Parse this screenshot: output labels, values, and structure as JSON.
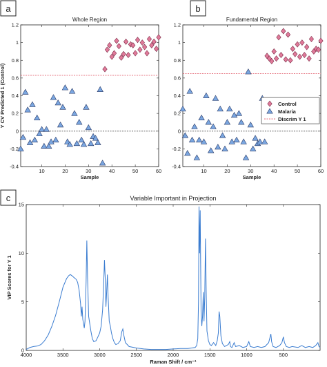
{
  "panels": {
    "a": {
      "label": "a"
    },
    "b": {
      "label": "b"
    },
    "c": {
      "label": "c"
    }
  },
  "colors": {
    "control": "#e07a9a",
    "malaria": "#7aa6e0",
    "discrim": "#e05060",
    "vip_line": "#3a7cd0"
  },
  "chart_data": [
    {
      "type": "scatter",
      "title": "Whole Region",
      "xlabel": "Sample",
      "ylabel": "Y CV Predicted 1 (Control)",
      "xlim": [
        1,
        60
      ],
      "ylim": [
        -0.4,
        1.2
      ],
      "xticks": [
        10,
        20,
        30,
        40,
        50,
        60
      ],
      "yticks": [
        -0.4,
        -0.2,
        0,
        0.2,
        0.4,
        0.6,
        0.8,
        1,
        1.2
      ],
      "discrim_y": 0.63,
      "zero_line": 0,
      "series": [
        {
          "name": "Malaria",
          "marker": "triangle",
          "points": [
            [
              1,
              -0.2
            ],
            [
              2,
              -0.07
            ],
            [
              3,
              0.44
            ],
            [
              4,
              0.24
            ],
            [
              5,
              -0.13
            ],
            [
              6,
              0.3
            ],
            [
              7,
              -0.1
            ],
            [
              8,
              0.15
            ],
            [
              9,
              -0.03
            ],
            [
              10,
              0.02
            ],
            [
              11,
              -0.17
            ],
            [
              12,
              0.02
            ],
            [
              13,
              -0.17
            ],
            [
              14,
              -0.12
            ],
            [
              15,
              0.38
            ],
            [
              16,
              -0.1
            ],
            [
              17,
              0.32
            ],
            [
              18,
              0.07
            ],
            [
              19,
              0.27
            ],
            [
              20,
              0.49
            ],
            [
              21,
              -0.12
            ],
            [
              22,
              -0.15
            ],
            [
              23,
              0.45
            ],
            [
              24,
              0.2
            ],
            [
              25,
              -0.14
            ],
            [
              26,
              0.1
            ],
            [
              27,
              -0.1
            ],
            [
              28,
              -0.15
            ],
            [
              29,
              0.27
            ],
            [
              30,
              0.04
            ],
            [
              31,
              -0.14
            ],
            [
              32,
              -0.06
            ],
            [
              33,
              -0.08
            ],
            [
              34,
              -0.13
            ],
            [
              35,
              0.47
            ],
            [
              36,
              -0.36
            ]
          ]
        },
        {
          "name": "Control",
          "marker": "diamond",
          "points": [
            [
              37,
              0.7
            ],
            [
              38,
              0.92
            ],
            [
              39,
              0.97
            ],
            [
              40,
              0.84
            ],
            [
              41,
              0.88
            ],
            [
              42,
              1.02
            ],
            [
              43,
              0.96
            ],
            [
              44,
              0.83
            ],
            [
              45,
              0.87
            ],
            [
              46,
              1.01
            ],
            [
              47,
              0.86
            ],
            [
              48,
              0.98
            ],
            [
              49,
              0.97
            ],
            [
              50,
              0.88
            ],
            [
              51,
              1.03
            ],
            [
              52,
              0.92
            ],
            [
              53,
              1.0
            ],
            [
              54,
              0.95
            ],
            [
              55,
              0.88
            ],
            [
              56,
              1.04
            ],
            [
              57,
              0.97
            ],
            [
              58,
              1.01
            ],
            [
              59,
              0.93
            ],
            [
              60,
              1.06
            ]
          ]
        }
      ]
    },
    {
      "type": "scatter",
      "title": "Fundamental Region",
      "xlabel": "Sample",
      "ylabel": "",
      "xlim": [
        1,
        60
      ],
      "ylim": [
        -0.4,
        1.2
      ],
      "xticks": [
        10,
        20,
        30,
        40,
        50,
        60
      ],
      "yticks": [
        -0.4,
        -0.2,
        0,
        0.2,
        0.4,
        0.6,
        0.8,
        1,
        1.2
      ],
      "discrim_y": 0.65,
      "zero_line": 0,
      "legend": {
        "position": "right",
        "entries": [
          "Control",
          "Malaria",
          "Discrim Y 1"
        ]
      },
      "series": [
        {
          "name": "Malaria",
          "marker": "triangle",
          "points": [
            [
              1,
              0.25
            ],
            [
              2,
              -0.05
            ],
            [
              3,
              -0.25
            ],
            [
              4,
              0.45
            ],
            [
              5,
              -0.1
            ],
            [
              6,
              0.05
            ],
            [
              7,
              -0.3
            ],
            [
              8,
              -0.1
            ],
            [
              9,
              0.15
            ],
            [
              10,
              -0.12
            ],
            [
              11,
              0.4
            ],
            [
              12,
              0.1
            ],
            [
              13,
              -0.22
            ],
            [
              14,
              0.05
            ],
            [
              15,
              0.37
            ],
            [
              16,
              -0.18
            ],
            [
              17,
              0.25
            ],
            [
              18,
              -0.05
            ],
            [
              19,
              -0.2
            ],
            [
              20,
              0.1
            ],
            [
              21,
              0.25
            ],
            [
              22,
              -0.12
            ],
            [
              23,
              0.18
            ],
            [
              24,
              -0.1
            ],
            [
              25,
              0.2
            ],
            [
              26,
              0.1
            ],
            [
              27,
              -0.12
            ],
            [
              28,
              -0.3
            ],
            [
              29,
              0.67
            ],
            [
              30,
              0.07
            ],
            [
              31,
              -0.2
            ],
            [
              32,
              -0.08
            ],
            [
              33,
              -0.14
            ],
            [
              34,
              -0.12
            ],
            [
              35,
              0.37
            ],
            [
              36,
              -0.12
            ]
          ]
        },
        {
          "name": "Control",
          "marker": "diamond",
          "points": [
            [
              37,
              0.85
            ],
            [
              38,
              0.82
            ],
            [
              39,
              0.79
            ],
            [
              40,
              0.9
            ],
            [
              41,
              0.82
            ],
            [
              42,
              1.06
            ],
            [
              43,
              0.86
            ],
            [
              44,
              1.13
            ],
            [
              45,
              0.81
            ],
            [
              46,
              1.09
            ],
            [
              47,
              0.8
            ],
            [
              48,
              0.93
            ],
            [
              49,
              0.87
            ],
            [
              50,
              0.98
            ],
            [
              51,
              0.84
            ],
            [
              52,
              1.0
            ],
            [
              53,
              0.86
            ],
            [
              54,
              0.95
            ],
            [
              55,
              0.82
            ],
            [
              56,
              1.04
            ],
            [
              57,
              0.9
            ],
            [
              58,
              0.93
            ],
            [
              59,
              0.92
            ],
            [
              60,
              1.02
            ]
          ]
        }
      ]
    },
    {
      "type": "line",
      "title": "Variable Important in Projection",
      "xlabel": "Raman Shift / cm⁻¹",
      "ylabel": "VIP Scores for Y 1",
      "xlim": [
        4000,
        0
      ],
      "ylim": [
        0,
        15
      ],
      "xticks": [
        4000,
        3500,
        3000,
        2500,
        2000,
        1500,
        1000,
        500
      ],
      "yticks": [
        0,
        5,
        10,
        15
      ],
      "series": [
        {
          "name": "VIP",
          "points": [
            [
              4000,
              0.1
            ],
            [
              3950,
              0.3
            ],
            [
              3900,
              0.4
            ],
            [
              3850,
              0.45
            ],
            [
              3800,
              0.6
            ],
            [
              3750,
              1.0
            ],
            [
              3700,
              1.6
            ],
            [
              3650,
              2.5
            ],
            [
              3600,
              3.6
            ],
            [
              3550,
              5.0
            ],
            [
              3500,
              6.5
            ],
            [
              3450,
              7.4
            ],
            [
              3420,
              7.7
            ],
            [
              3400,
              7.8
            ],
            [
              3380,
              7.7
            ],
            [
              3350,
              7.5
            ],
            [
              3320,
              7.3
            ],
            [
              3300,
              7.0
            ],
            [
              3280,
              6.2
            ],
            [
              3260,
              4.8
            ],
            [
              3250,
              3.5
            ],
            [
              3240,
              4.5
            ],
            [
              3230,
              3.2
            ],
            [
              3210,
              2.3
            ],
            [
              3200,
              3.0
            ],
            [
              3185,
              7.0
            ],
            [
              3175,
              11.3
            ],
            [
              3165,
              7.5
            ],
            [
              3150,
              3.5
            ],
            [
              3120,
              2.0
            ],
            [
              3100,
              1.2
            ],
            [
              3080,
              0.9
            ],
            [
              3050,
              1.0
            ],
            [
              3030,
              1.3
            ],
            [
              3000,
              1.8
            ],
            [
              2980,
              2.5
            ],
            [
              2960,
              4.2
            ],
            [
              2945,
              7.0
            ],
            [
              2935,
              9.3
            ],
            [
              2925,
              7.5
            ],
            [
              2915,
              4.5
            ],
            [
              2905,
              6.0
            ],
            [
              2895,
              7.8
            ],
            [
              2885,
              5.5
            ],
            [
              2870,
              3.0
            ],
            [
              2855,
              2.5
            ],
            [
              2840,
              1.8
            ],
            [
              2820,
              1.2
            ],
            [
              2800,
              0.8
            ],
            [
              2780,
              0.6
            ],
            [
              2750,
              0.7
            ],
            [
              2720,
              1.0
            ],
            [
              2700,
              1.9
            ],
            [
              2685,
              2.2
            ],
            [
              2670,
              1.5
            ],
            [
              2650,
              0.8
            ],
            [
              2600,
              0.4
            ],
            [
              2500,
              0.25
            ],
            [
              2400,
              0.15
            ],
            [
              2300,
              0.1
            ],
            [
              2200,
              0.1
            ],
            [
              2100,
              0.1
            ],
            [
              2000,
              0.15
            ],
            [
              1900,
              0.2
            ],
            [
              1800,
              0.2
            ],
            [
              1700,
              0.3
            ],
            [
              1680,
              0.5
            ],
            [
              1665,
              1.2
            ],
            [
              1655,
              5.0
            ],
            [
              1648,
              14.8
            ],
            [
              1640,
              10.0
            ],
            [
              1632,
              14.4
            ],
            [
              1620,
              4.0
            ],
            [
              1610,
              2.5
            ],
            [
              1600,
              3.5
            ],
            [
              1590,
              6.0
            ],
            [
              1580,
              3.0
            ],
            [
              1570,
              5.5
            ],
            [
              1560,
              11.5
            ],
            [
              1550,
              6.0
            ],
            [
              1540,
              2.0
            ],
            [
              1520,
              1.0
            ],
            [
              1500,
              0.6
            ],
            [
              1480,
              0.5
            ],
            [
              1450,
              0.8
            ],
            [
              1420,
              0.5
            ],
            [
              1400,
              1.0
            ],
            [
              1385,
              1.8
            ],
            [
              1375,
              4.0
            ],
            [
              1365,
              3.5
            ],
            [
              1350,
              1.5
            ],
            [
              1330,
              0.7
            ],
            [
              1300,
              0.4
            ],
            [
              1250,
              0.6
            ],
            [
              1230,
              0.9
            ],
            [
              1220,
              0.4
            ],
            [
              1200,
              0.3
            ],
            [
              1170,
              0.8
            ],
            [
              1150,
              0.4
            ],
            [
              1100,
              0.5
            ],
            [
              1050,
              0.3
            ],
            [
              1000,
              0.4
            ],
            [
              970,
              0.9
            ],
            [
              950,
              0.4
            ],
            [
              900,
              0.3
            ],
            [
              850,
              0.4
            ],
            [
              800,
              0.3
            ],
            [
              750,
              0.4
            ],
            [
              700,
              0.8
            ],
            [
              670,
              1.7
            ],
            [
              660,
              0.9
            ],
            [
              640,
              0.4
            ],
            [
              600,
              0.3
            ],
            [
              550,
              0.5
            ],
            [
              520,
              0.8
            ],
            [
              500,
              1.4
            ],
            [
              485,
              0.8
            ],
            [
              460,
              0.4
            ],
            [
              420,
              0.3
            ],
            [
              380,
              0.4
            ],
            [
              300,
              0.3
            ],
            [
              250,
              0.5
            ],
            [
              200,
              0.3
            ],
            [
              150,
              0.4
            ],
            [
              100,
              0.3
            ],
            [
              60,
              0.5
            ],
            [
              30,
              0.8
            ],
            [
              15,
              0.4
            ],
            [
              0,
              0.3
            ]
          ]
        }
      ]
    }
  ]
}
